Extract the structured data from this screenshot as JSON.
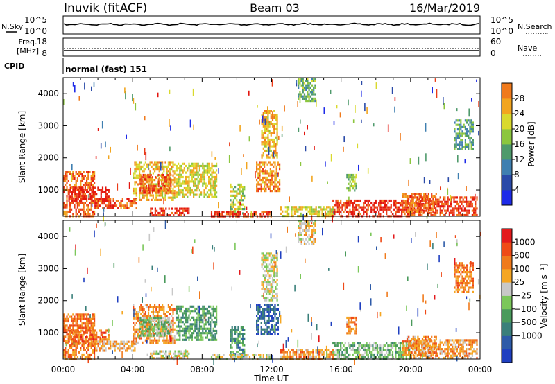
{
  "header": {
    "station": "Inuvik (fitACF)",
    "beam": "Beam 03",
    "date": "16/Mar/2019"
  },
  "noise_panel": {
    "left_label": "N.Sky",
    "right_label": "N.Search",
    "left_ticks": [
      "10^5",
      "10^0"
    ],
    "right_ticks": [
      "10^5",
      "10^0"
    ]
  },
  "freq_panel": {
    "left_label_1": "Freq.",
    "left_label_2": "[MHz]",
    "right_label": "Nave",
    "left_ticks": [
      "18",
      "8"
    ],
    "right_ticks": [
      "60",
      "0"
    ],
    "cpid_label": "CPID",
    "cpid_text": "normal (fast) 151"
  },
  "colors": {
    "power": [
      "#1e2be8",
      "#2a4aa8",
      "#3f7fb0",
      "#4f9a6c",
      "#8cc63f",
      "#d9d92e",
      "#f2a51f",
      "#f07a1c",
      "#ea3b18",
      "#e3160f"
    ],
    "velocity": [
      "#e31a1c",
      "#ef4a17",
      "#f07a1c",
      "#f5a623",
      "#c8c8c8",
      "#7bc75a",
      "#4a9a5c",
      "#3a7f7a",
      "#2e5ba8",
      "#1f3fc0"
    ]
  },
  "chart_data": [
    {
      "type": "heatmap",
      "name": "power",
      "ylabel": "Slant Range [km]",
      "ylim": [
        180,
        4500
      ],
      "yticks": [
        1000,
        2000,
        3000,
        4000
      ],
      "x_range_hours": [
        0,
        24
      ],
      "colorbar": {
        "label": "Power [dB]",
        "range": [
          0,
          32
        ],
        "ticks": [
          "4",
          "8",
          "12",
          "16",
          "20",
          "24",
          "28"
        ]
      },
      "regions": [
        {
          "t": [
            0.0,
            1.8
          ],
          "r": [
            200,
            1600
          ],
          "level": 0.78
        },
        {
          "t": [
            0.3,
            2.6
          ],
          "r": [
            650,
            1100
          ],
          "level": 0.95
        },
        {
          "t": [
            1.8,
            4.2
          ],
          "r": [
            450,
            750
          ],
          "level": 0.82
        },
        {
          "t": [
            4.0,
            6.4
          ],
          "r": [
            700,
            1900
          ],
          "level": 0.62
        },
        {
          "t": [
            4.4,
            6.2
          ],
          "r": [
            900,
            1500
          ],
          "level": 0.8
        },
        {
          "t": [
            6.5,
            8.8
          ],
          "r": [
            800,
            1850
          ],
          "level": 0.55
        },
        {
          "t": [
            5.0,
            7.2
          ],
          "r": [
            200,
            450
          ],
          "level": 0.92
        },
        {
          "t": [
            9.6,
            10.4
          ],
          "r": [
            300,
            1200
          ],
          "level": 0.5
        },
        {
          "t": [
            11.1,
            12.5
          ],
          "r": [
            1000,
            1900
          ],
          "level": 0.7
        },
        {
          "t": [
            11.4,
            12.3
          ],
          "r": [
            2000,
            3500
          ],
          "level": 0.62
        },
        {
          "t": [
            8.5,
            12.0
          ],
          "r": [
            200,
            350
          ],
          "level": 0.88
        },
        {
          "t": [
            12.5,
            15.5
          ],
          "r": [
            200,
            500
          ],
          "level": 0.55
        },
        {
          "t": [
            16.3,
            16.9
          ],
          "r": [
            1000,
            1500
          ],
          "level": 0.45
        },
        {
          "t": [
            15.5,
            20.0
          ],
          "r": [
            200,
            700
          ],
          "level": 0.9
        },
        {
          "t": [
            20.0,
            23.8
          ],
          "r": [
            200,
            800
          ],
          "level": 0.85
        },
        {
          "t": [
            19.5,
            21.5
          ],
          "r": [
            300,
            900
          ],
          "level": 0.78
        },
        {
          "t": [
            13.5,
            14.5
          ],
          "r": [
            3800,
            4500
          ],
          "level": 0.4
        },
        {
          "t": [
            22.5,
            23.6
          ],
          "r": [
            2300,
            3200
          ],
          "level": 0.35
        }
      ]
    },
    {
      "type": "heatmap",
      "name": "velocity",
      "ylabel": "Slant Range [km]",
      "ylim": [
        180,
        4500
      ],
      "yticks": [
        1000,
        2000,
        3000,
        4000
      ],
      "x_range_hours": [
        0,
        24
      ],
      "xticks": [
        "00:00",
        "04:00",
        "08:00",
        "12:00",
        "16:00",
        "20:00",
        "00:00"
      ],
      "xlabel": "Time UT",
      "colorbar": {
        "label": "Velocity [m s⁻¹]",
        "ticks": [
          "1000",
          "500",
          "100",
          "25",
          "−25",
          "−100",
          "−500",
          "−1000"
        ]
      },
      "regions": [
        {
          "t": [
            0.0,
            1.8
          ],
          "r": [
            200,
            1600
          ],
          "level": 0.25
        },
        {
          "t": [
            0.3,
            2.6
          ],
          "r": [
            650,
            1100
          ],
          "level": 0.2
        },
        {
          "t": [
            1.8,
            4.2
          ],
          "r": [
            450,
            750
          ],
          "level": 0.35
        },
        {
          "t": [
            4.0,
            6.4
          ],
          "r": [
            700,
            1900
          ],
          "level": 0.3
        },
        {
          "t": [
            4.4,
            6.2
          ],
          "r": [
            900,
            1500
          ],
          "level": 0.55
        },
        {
          "t": [
            6.5,
            8.8
          ],
          "r": [
            800,
            1850
          ],
          "level": 0.65
        },
        {
          "t": [
            5.0,
            7.2
          ],
          "r": [
            200,
            450
          ],
          "level": 0.48
        },
        {
          "t": [
            9.6,
            10.4
          ],
          "r": [
            300,
            1200
          ],
          "level": 0.7
        },
        {
          "t": [
            11.1,
            12.5
          ],
          "r": [
            1000,
            1900
          ],
          "level": 0.85
        },
        {
          "t": [
            11.4,
            12.3
          ],
          "r": [
            2000,
            3500
          ],
          "level": 0.45
        },
        {
          "t": [
            8.5,
            12.0
          ],
          "r": [
            200,
            350
          ],
          "level": 0.45
        },
        {
          "t": [
            12.5,
            15.5
          ],
          "r": [
            200,
            500
          ],
          "level": 0.3
        },
        {
          "t": [
            16.3,
            16.9
          ],
          "r": [
            1000,
            1500
          ],
          "level": 0.3
        },
        {
          "t": [
            15.5,
            20.0
          ],
          "r": [
            200,
            700
          ],
          "level": 0.58
        },
        {
          "t": [
            20.0,
            23.8
          ],
          "r": [
            200,
            800
          ],
          "level": 0.32
        },
        {
          "t": [
            19.5,
            21.5
          ],
          "r": [
            300,
            900
          ],
          "level": 0.28
        },
        {
          "t": [
            13.5,
            14.5
          ],
          "r": [
            3800,
            4500
          ],
          "level": 0.4
        },
        {
          "t": [
            22.5,
            23.6
          ],
          "r": [
            2300,
            3200
          ],
          "level": 0.25
        }
      ]
    }
  ]
}
